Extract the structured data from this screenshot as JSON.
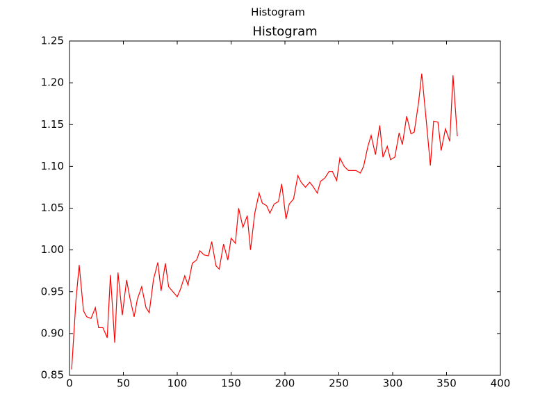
{
  "chart_data": {
    "type": "line",
    "suptitle": "Histogram",
    "title": "Histogram",
    "x": [
      2,
      6,
      9,
      13,
      16,
      20,
      24,
      27,
      31,
      35,
      38,
      42,
      45,
      49,
      53,
      56,
      60,
      63,
      67,
      71,
      74,
      78,
      82,
      85,
      89,
      92,
      96,
      100,
      103,
      107,
      110,
      114,
      118,
      121,
      125,
      129,
      132,
      136,
      139,
      143,
      147,
      150,
      154,
      157,
      161,
      165,
      168,
      172,
      176,
      179,
      183,
      186,
      190,
      194,
      197,
      201,
      204,
      208,
      212,
      215,
      219,
      223,
      226,
      230,
      233,
      237,
      241,
      244,
      248,
      251,
      255,
      259,
      262,
      266,
      270,
      273,
      277,
      280,
      284,
      288,
      291,
      295,
      298,
      302,
      306,
      309,
      313,
      317,
      320,
      324,
      327,
      331,
      335,
      338,
      342,
      345,
      349,
      353,
      356,
      360
    ],
    "series": [
      {
        "name": "series",
        "color": "#ff0000",
        "values": [
          0.857,
          0.94,
          0.982,
          0.927,
          0.92,
          0.918,
          0.931,
          0.907,
          0.907,
          0.895,
          0.97,
          0.889,
          0.973,
          0.922,
          0.964,
          0.943,
          0.92,
          0.941,
          0.956,
          0.931,
          0.925,
          0.965,
          0.985,
          0.951,
          0.984,
          0.956,
          0.95,
          0.944,
          0.953,
          0.969,
          0.958,
          0.984,
          0.988,
          0.999,
          0.994,
          0.993,
          1.01,
          0.981,
          0.977,
          1.007,
          0.988,
          1.014,
          1.008,
          1.05,
          1.027,
          1.041,
          1.0,
          1.044,
          1.068,
          1.056,
          1.053,
          1.044,
          1.055,
          1.058,
          1.079,
          1.037,
          1.055,
          1.061,
          1.089,
          1.081,
          1.075,
          1.081,
          1.076,
          1.068,
          1.082,
          1.086,
          1.094,
          1.094,
          1.083,
          1.11,
          1.1,
          1.095,
          1.095,
          1.095,
          1.092,
          1.1,
          1.124,
          1.137,
          1.114,
          1.149,
          1.111,
          1.124,
          1.108,
          1.111,
          1.14,
          1.126,
          1.16,
          1.139,
          1.141,
          1.176,
          1.211,
          1.157,
          1.101,
          1.154,
          1.153,
          1.119,
          1.145,
          1.13,
          1.209,
          1.136
        ]
      }
    ],
    "xlim": [
      0,
      400
    ],
    "xticks": [
      0,
      50,
      100,
      150,
      200,
      250,
      300,
      350,
      400
    ],
    "ylim": [
      0.85,
      1.25
    ],
    "yticks": [
      {
        "value": 0.85,
        "label": "0.85"
      },
      {
        "value": 0.9,
        "label": "0.90"
      },
      {
        "value": 0.95,
        "label": "0.95"
      },
      {
        "value": 1.0,
        "label": "1.00"
      },
      {
        "value": 1.05,
        "label": "1.05"
      },
      {
        "value": 1.1,
        "label": "1.10"
      },
      {
        "value": 1.15,
        "label": "1.15"
      },
      {
        "value": 1.2,
        "label": "1.20"
      },
      {
        "value": 1.25,
        "label": "1.25"
      }
    ],
    "grid": false
  }
}
